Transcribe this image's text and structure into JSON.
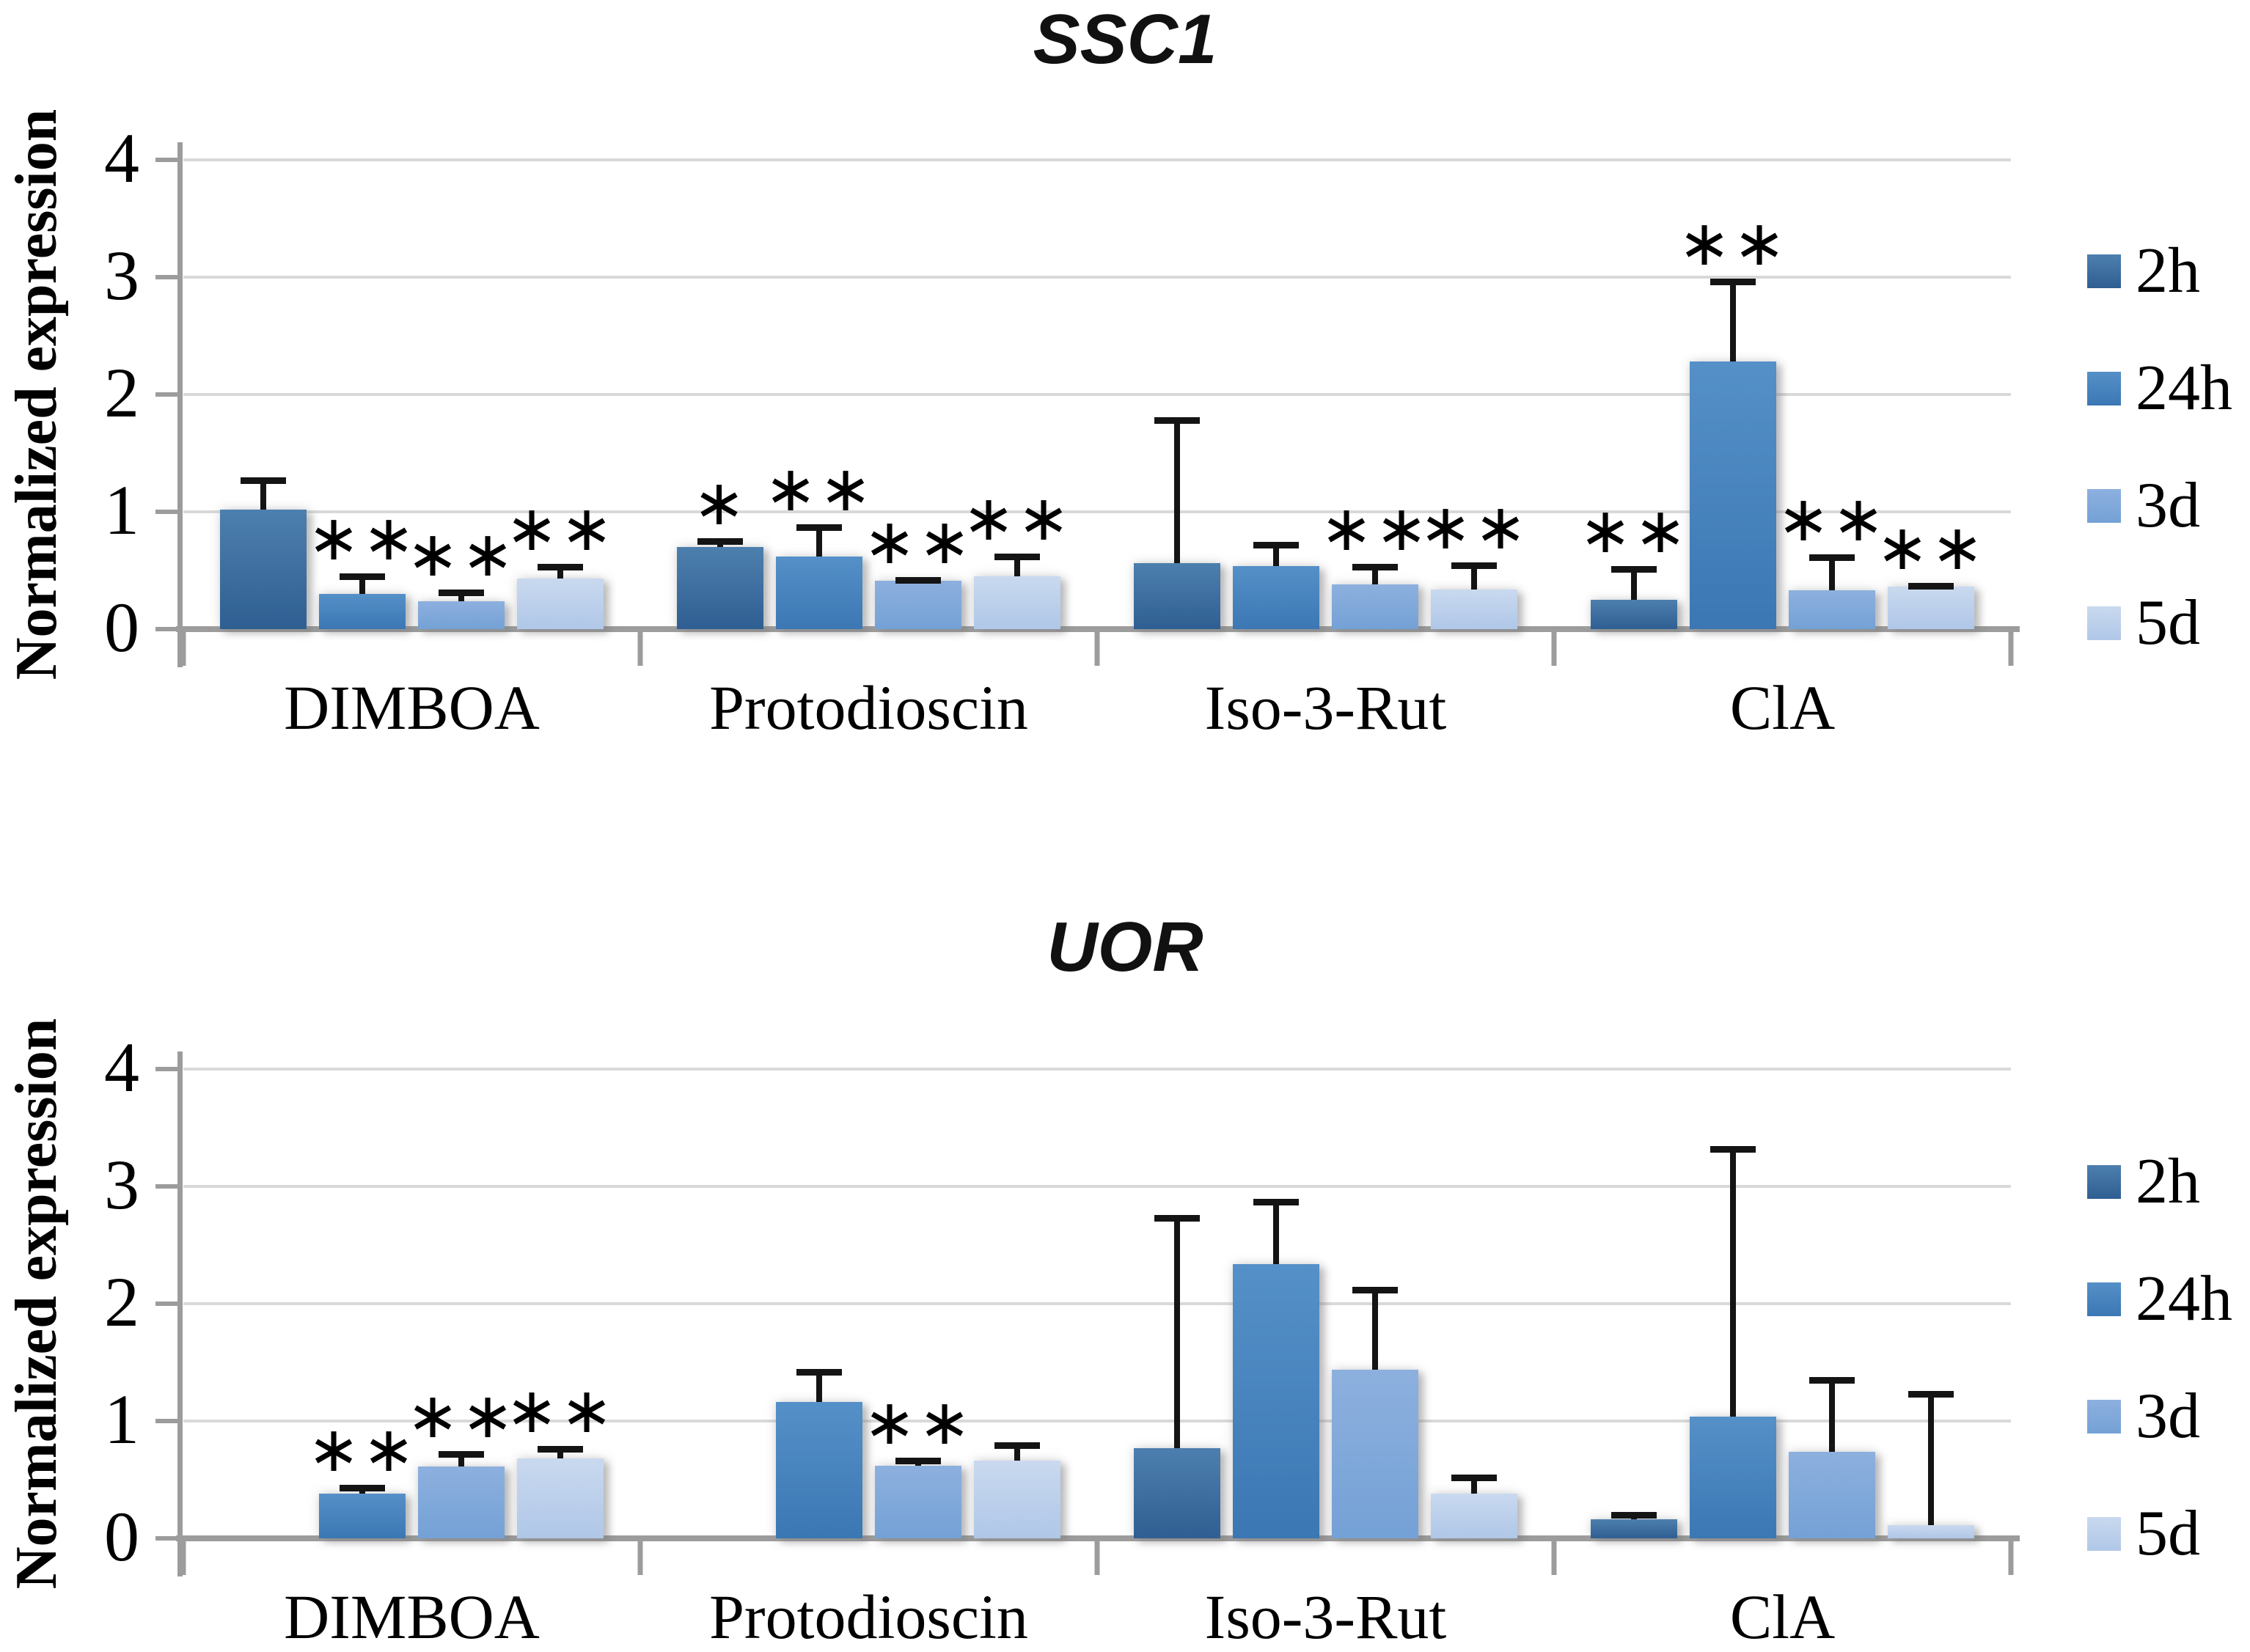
{
  "page": {
    "background": "#ffffff"
  },
  "axis_style": {
    "grid_color": "#d9d9d9",
    "axis_color": "#9c9c9c",
    "error_bar_color": "#141414"
  },
  "chart_data": [
    {
      "type": "bar",
      "title": "SSC1",
      "ylabel": "Normalized expression",
      "xlabel": "",
      "ylim": [
        0,
        4
      ],
      "yticks": [
        0,
        1,
        2,
        3,
        4
      ],
      "grid": true,
      "legend_position": "right",
      "categories": [
        "DIMBOA",
        "Protodioscin",
        "Iso-3-Rut",
        "ClA"
      ],
      "series": [
        {
          "name": "2h",
          "color_top": "#4d7fae",
          "color_bottom": "#2f5f92",
          "values": [
            1.02,
            0.7,
            0.56,
            0.25
          ],
          "errors_plus": [
            0.27,
            0.07,
            1.24,
            0.28
          ],
          "significance": [
            "",
            "*",
            "",
            "**"
          ]
        },
        {
          "name": "24h",
          "color_top": "#5590c8",
          "color_bottom": "#3b77b3",
          "values": [
            0.3,
            0.62,
            0.54,
            2.28
          ],
          "errors_plus": [
            0.17,
            0.27,
            0.2,
            0.7
          ],
          "significance": [
            "**",
            "**",
            "",
            "**"
          ]
        },
        {
          "name": "3d",
          "color_top": "#8db0de",
          "color_bottom": "#74a1d6",
          "values": [
            0.24,
            0.41,
            0.38,
            0.33
          ],
          "errors_plus": [
            0.09,
            0.03,
            0.17,
            0.3
          ],
          "significance": [
            "**",
            "**",
            "**",
            "**"
          ]
        },
        {
          "name": "5d",
          "color_top": "#c9d9ef",
          "color_bottom": "#b0c7e8",
          "values": [
            0.43,
            0.45,
            0.34,
            0.36
          ],
          "errors_plus": [
            0.12,
            0.19,
            0.22,
            0.03
          ],
          "significance": [
            "**",
            "**",
            "**",
            "**"
          ]
        }
      ]
    },
    {
      "type": "bar",
      "title": "UOR",
      "ylabel": "Normalized expression",
      "xlabel": "",
      "ylim": [
        0,
        4
      ],
      "yticks": [
        0,
        1,
        2,
        3,
        4
      ],
      "grid": true,
      "legend_position": "right",
      "categories": [
        "DIMBOA",
        "Protodioscin",
        "Iso-3-Rut",
        "ClA"
      ],
      "series": [
        {
          "name": "2h",
          "color_top": "#4d7fae",
          "color_bottom": "#2f5f92",
          "values": [
            0,
            0,
            0.77,
            0.16
          ],
          "errors_plus": [
            0,
            0,
            1.98,
            0.06
          ],
          "significance": [
            "",
            "",
            "",
            ""
          ]
        },
        {
          "name": "24h",
          "color_top": "#5590c8",
          "color_bottom": "#3b77b3",
          "values": [
            0.38,
            1.16,
            2.34,
            1.04
          ],
          "errors_plus": [
            0.07,
            0.28,
            0.55,
            2.3
          ],
          "significance": [
            "**",
            "",
            "",
            ""
          ]
        },
        {
          "name": "3d",
          "color_top": "#8db0de",
          "color_bottom": "#74a1d6",
          "values": [
            0.61,
            0.62,
            1.44,
            0.74
          ],
          "errors_plus": [
            0.13,
            0.06,
            0.7,
            0.63
          ],
          "significance": [
            "**",
            "**",
            "",
            ""
          ]
        },
        {
          "name": "5d",
          "color_top": "#c9d9ef",
          "color_bottom": "#b0c7e8",
          "values": [
            0.68,
            0.66,
            0.38,
            0.11
          ],
          "errors_plus": [
            0.1,
            0.15,
            0.16,
            1.14
          ],
          "significance": [
            "**",
            "",
            "",
            ""
          ]
        }
      ]
    }
  ]
}
